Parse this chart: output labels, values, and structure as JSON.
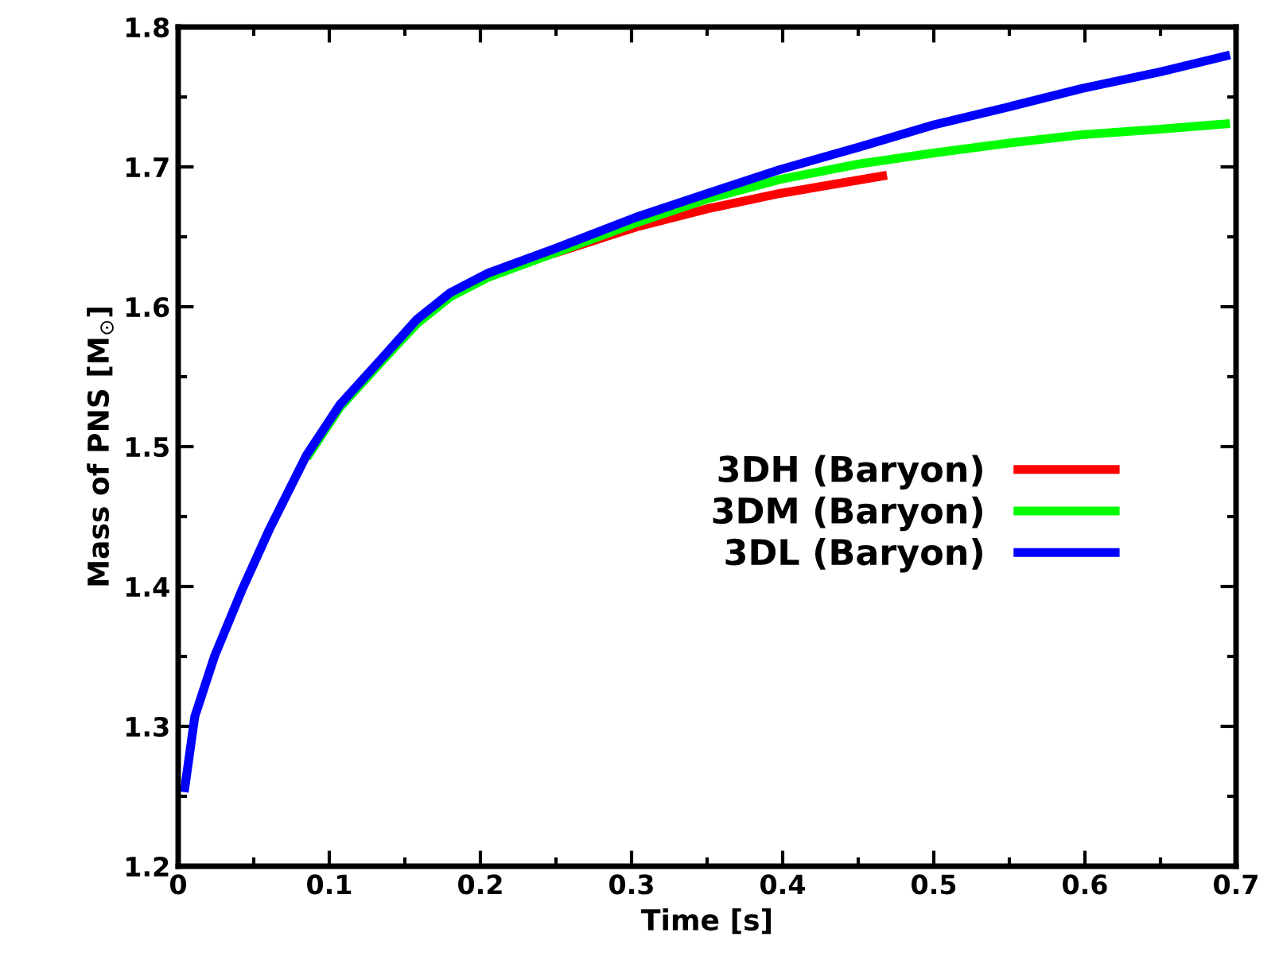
{
  "chart_data": {
    "type": "line",
    "xlabel": "Time [s]",
    "ylabel": "Mass of PNS [M$_{⊙}$]",
    "xlim": [
      0,
      0.7
    ],
    "ylim": [
      1.2,
      1.8
    ],
    "xticks": [
      0,
      0.1,
      0.2,
      0.3,
      0.4,
      0.5,
      0.6,
      0.7
    ],
    "yticks": [
      1.2,
      1.3,
      1.4,
      1.5,
      1.6,
      1.7,
      1.8
    ],
    "legend": "right",
    "grid": false,
    "marker": "none",
    "line_style": "solid",
    "series": [
      {
        "name": "3DH (Baryon)",
        "color": "#ff0000",
        "x": [
          0.248,
          0.303,
          0.35,
          0.398,
          0.469
        ],
        "values": [
          1.638,
          1.657,
          1.67,
          1.681,
          1.694
        ]
      },
      {
        "name": "3DM (Baryon)",
        "color": "#00ff00",
        "x": [
          0.085,
          0.107,
          0.133,
          0.158,
          0.18,
          0.205,
          0.248,
          0.303,
          0.35,
          0.398,
          0.45,
          0.5,
          0.55,
          0.598,
          0.65,
          0.696
        ],
        "values": [
          1.492,
          1.528,
          1.559,
          1.588,
          1.607,
          1.621,
          1.638,
          1.66,
          1.677,
          1.691,
          1.702,
          1.71,
          1.717,
          1.723,
          1.727,
          1.731
        ]
      },
      {
        "name": "3DL (Baryon)",
        "color": "#0000ff",
        "x": [
          0.004,
          0.011,
          0.024,
          0.042,
          0.06,
          0.085,
          0.107,
          0.133,
          0.158,
          0.18,
          0.205,
          0.248,
          0.303,
          0.35,
          0.398,
          0.45,
          0.5,
          0.55,
          0.598,
          0.65,
          0.696
        ],
        "values": [
          1.253,
          1.307,
          1.35,
          1.397,
          1.44,
          1.494,
          1.53,
          1.561,
          1.591,
          1.61,
          1.624,
          1.641,
          1.664,
          1.681,
          1.698,
          1.714,
          1.73,
          1.743,
          1.756,
          1.768,
          1.78
        ]
      }
    ]
  }
}
